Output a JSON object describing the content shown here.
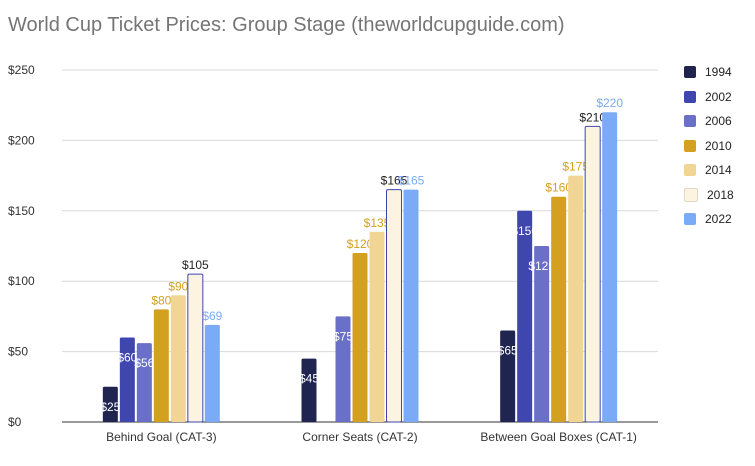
{
  "chart_data": {
    "type": "bar",
    "title": "World Cup Ticket Prices: Group Stage (theworldcupguide.com)",
    "xlabel": "",
    "ylabel": "",
    "categories": [
      "Behind Goal (CAT-3)",
      "Corner Seats (CAT-2)",
      "Between Goal Boxes (CAT-1)"
    ],
    "ylim": [
      0,
      250
    ],
    "yticks": [
      0,
      50,
      100,
      150,
      200,
      250
    ],
    "ytick_labels": [
      "$0",
      "$50",
      "$100",
      "$150",
      "$200",
      "$250"
    ],
    "grid": true,
    "legend_position": "right",
    "series": [
      {
        "name": "1994",
        "color": "#1f2451",
        "label_color": "#ffffff",
        "label_inside": true,
        "values": [
          25,
          45,
          65
        ],
        "labels": [
          "$25",
          "$45",
          "$65"
        ]
      },
      {
        "name": "2002",
        "color": "#3f46ad",
        "label_color": "#ffffff",
        "label_inside": true,
        "values": [
          60,
          null,
          150
        ],
        "labels": [
          "$60",
          "",
          "$150"
        ]
      },
      {
        "name": "2006",
        "color": "#6a6fc8",
        "label_color": "#ffffff",
        "label_inside": true,
        "values": [
          56,
          75,
          125
        ],
        "labels": [
          "$56",
          "$75",
          "$125"
        ]
      },
      {
        "name": "2010",
        "color": "#d4a020",
        "label_color": "#d4a020",
        "label_inside": false,
        "values": [
          80,
          120,
          160
        ],
        "labels": [
          "$80",
          "$120",
          "$160"
        ]
      },
      {
        "name": "2014",
        "color": "#f1d595",
        "label_color": "#d4a020",
        "label_inside": false,
        "values": [
          90,
          135,
          175
        ],
        "labels": [
          "$90",
          "$135",
          "$175"
        ]
      },
      {
        "name": "2018",
        "color": "#fcf3e0",
        "label_color": "#222222",
        "label_inside": false,
        "values": [
          105,
          165,
          210
        ],
        "labels": [
          "$105",
          "$165",
          "$210"
        ]
      },
      {
        "name": "2022",
        "color": "#7baaf7",
        "label_color": "#7baaf7",
        "label_inside": false,
        "values": [
          69,
          165,
          220
        ],
        "labels": [
          "$69",
          "$165",
          "$220"
        ]
      }
    ]
  }
}
